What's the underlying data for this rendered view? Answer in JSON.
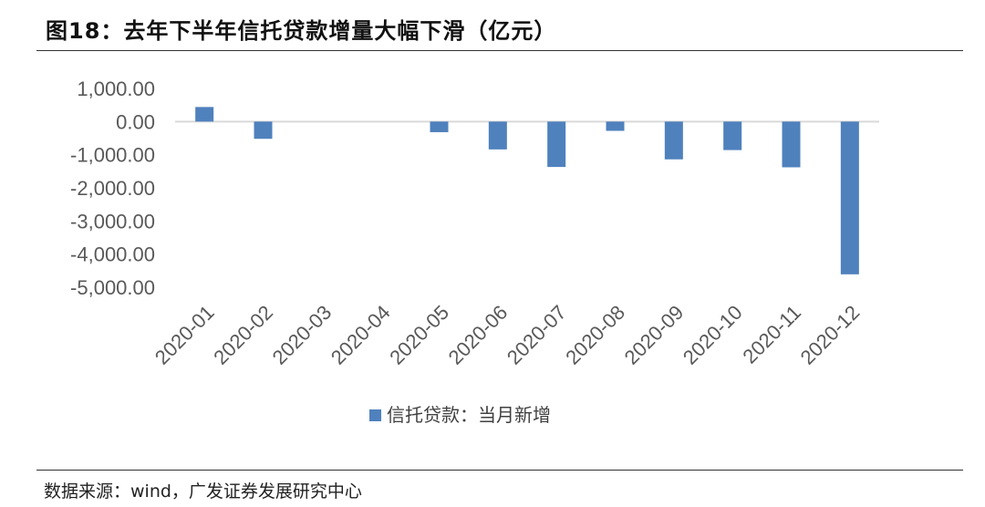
{
  "figure": {
    "title": "图18：去年下半年信托贷款增量大幅下滑（亿元）",
    "source": "数据来源：wind，广发证券发展研究中心"
  },
  "chart_data": {
    "type": "bar",
    "categories": [
      "2020-01",
      "2020-02",
      "2020-03",
      "2020-04",
      "2020-05",
      "2020-06",
      "2020-07",
      "2020-08",
      "2020-09",
      "2020-10",
      "2020-11",
      "2020-12"
    ],
    "series": [
      {
        "name": "信托贷款：当月新增",
        "values": [
          440,
          -520,
          0,
          0,
          -320,
          -840,
          -1370,
          -280,
          -1140,
          -860,
          -1380,
          -4610
        ]
      }
    ],
    "y_ticks": [
      "1,000.00",
      "0.00",
      "-1,000.00",
      "-2,000.00",
      "-3,000.00",
      "-4,000.00",
      "-5,000.00"
    ],
    "ylim": [
      -5000,
      1000
    ],
    "grid": false,
    "legend_position": "bottom",
    "colors": {
      "bar": "#4f81bd",
      "zero_line": "#d9d9d9"
    }
  }
}
